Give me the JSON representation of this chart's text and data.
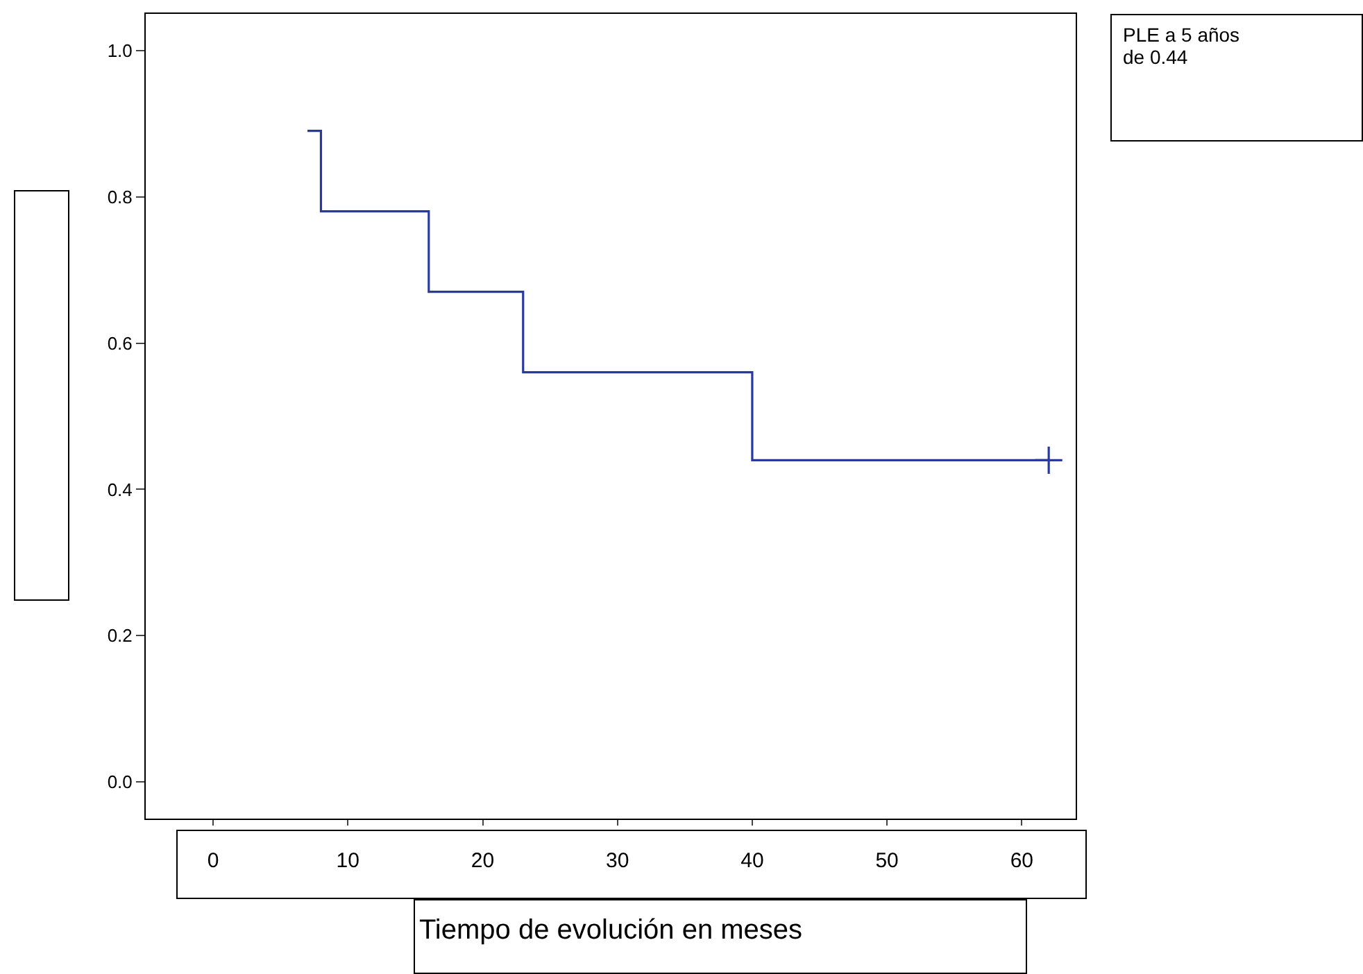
{
  "chart_data": {
    "type": "step",
    "xlabel": "Tiempo de evolución en meses",
    "annotations": [
      "PLE a 5 años de 0.44"
    ],
    "series": [
      {
        "color": "#2a3a9c",
        "x": [
          7,
          8,
          16,
          23,
          40,
          62
        ],
        "values": [
          0.89,
          0.78,
          0.67,
          0.56,
          0.44,
          0.44
        ],
        "marker": "none"
      },
      {
        "type": "scatter",
        "color": "#2a3a9c",
        "x": [
          62
        ],
        "values": [
          0.44
        ],
        "marker": "cross"
      }
    ],
    "xlim": [
      -5,
      64
    ],
    "xticks": [
      0,
      10,
      20,
      30,
      40,
      50,
      60
    ],
    "ylim": [
      -0.05,
      1.05
    ],
    "yticks": [
      {
        "value": 0,
        "label": "0.0"
      },
      {
        "value": 0.2,
        "label": "0.2"
      },
      {
        "value": 0.4,
        "label": "0.4"
      },
      {
        "value": 0.6,
        "label": "0.6"
      },
      {
        "value": 0.8,
        "label": "0.8"
      },
      {
        "value": 1,
        "label": "1.0"
      }
    ],
    "grid": false
  }
}
